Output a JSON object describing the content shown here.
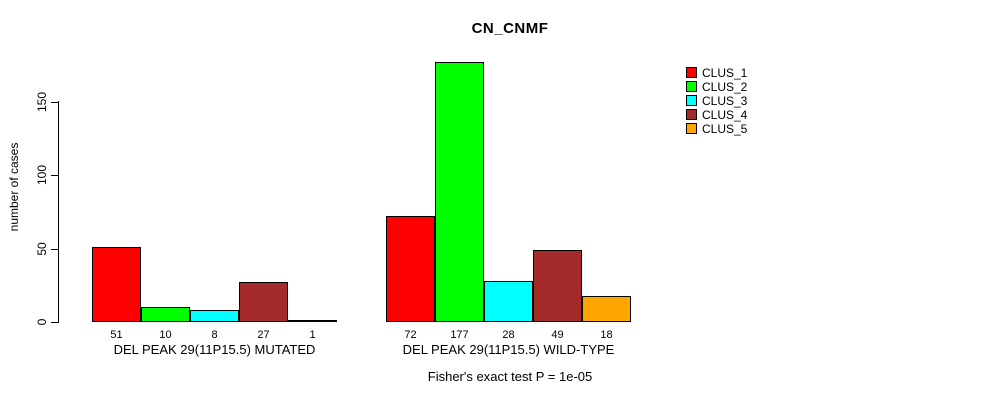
{
  "chart_data": {
    "type": "bar",
    "title": "CN_CNMF",
    "ylabel": "number of cases",
    "xlabel": "",
    "ylim": [
      0,
      177
    ],
    "yticks": [
      0,
      50,
      100,
      150
    ],
    "grid": false,
    "legend_position": "top-right",
    "series": [
      {
        "name": "CLUS_1",
        "color": "#FF0000",
        "values": [
          51,
          72
        ]
      },
      {
        "name": "CLUS_2",
        "color": "#00FF00",
        "values": [
          10,
          177
        ]
      },
      {
        "name": "CLUS_3",
        "color": "#00FFFF",
        "values": [
          8,
          28
        ]
      },
      {
        "name": "CLUS_4",
        "color": "#A52A2A",
        "values": [
          27,
          49
        ]
      },
      {
        "name": "CLUS_5",
        "color": "#FFA500",
        "values": [
          1,
          18
        ]
      }
    ],
    "categories": [
      "DEL PEAK 29(11P15.5) MUTATED",
      "DEL PEAK 29(11P15.5) WILD-TYPE"
    ],
    "bar_value_labels": [
      [
        "51",
        "10",
        "8",
        "27",
        "1"
      ],
      [
        "72",
        "177",
        "28",
        "49",
        "18"
      ]
    ],
    "footnote": "Fisher's exact test P = 1e-05",
    "colors": {
      "background": "#FFFFFF",
      "axis": "#000000",
      "text": "#000000"
    }
  }
}
